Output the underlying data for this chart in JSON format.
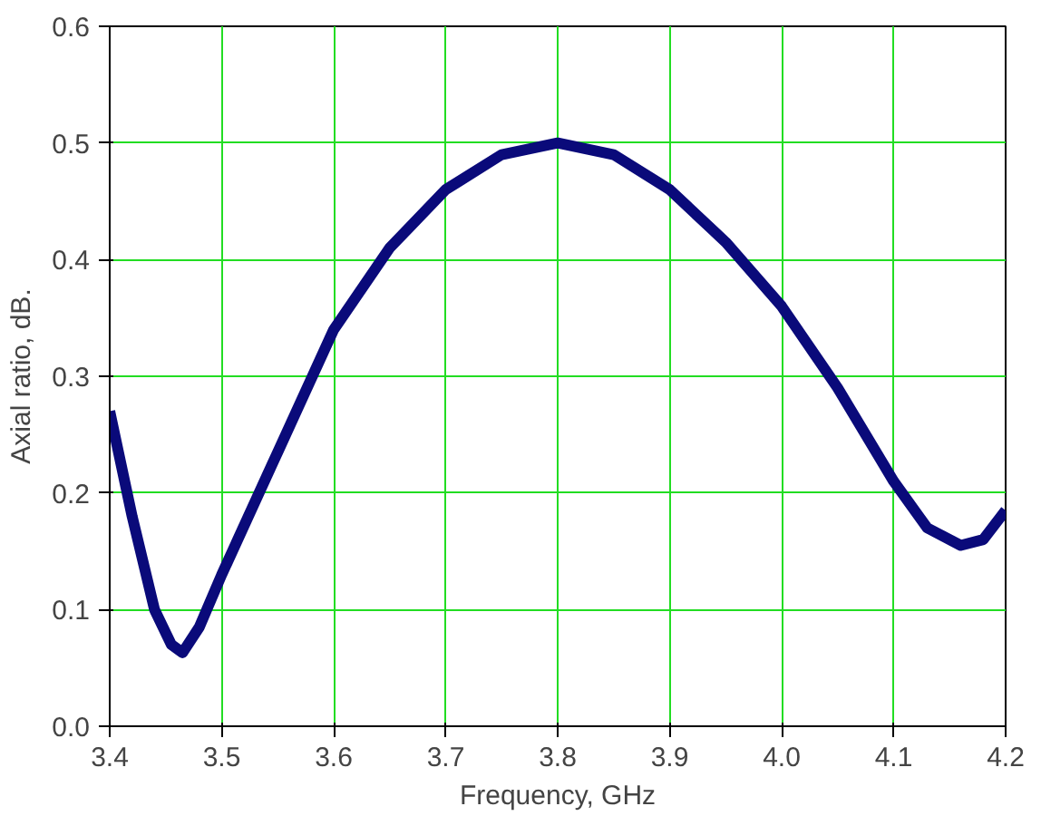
{
  "chart_data": {
    "type": "line",
    "xlabel": "Frequency, GHz",
    "ylabel": "Axial ratio, dB.",
    "x": [
      3.4,
      3.42,
      3.44,
      3.455,
      3.465,
      3.48,
      3.5,
      3.55,
      3.6,
      3.65,
      3.7,
      3.75,
      3.8,
      3.85,
      3.9,
      3.95,
      4.0,
      4.05,
      4.1,
      4.13,
      4.16,
      4.18,
      4.2
    ],
    "series": [
      {
        "color": "#0a0a7a",
        "values": [
          0.27,
          0.18,
          0.1,
          0.07,
          0.063,
          0.085,
          0.13,
          0.235,
          0.34,
          0.41,
          0.46,
          0.49,
          0.5,
          0.49,
          0.46,
          0.415,
          0.36,
          0.29,
          0.21,
          0.17,
          0.155,
          0.16,
          0.185
        ]
      }
    ],
    "xlim": [
      3.4,
      4.2
    ],
    "ylim": [
      0,
      0.6
    ],
    "xticks": [
      3.4,
      3.5,
      3.6,
      3.7,
      3.8,
      3.9,
      {
        "value": 4.0,
        "label": "4.0"
      },
      4.1,
      4.2
    ],
    "yticks": [
      {
        "value": 0,
        "label": "0.0"
      },
      0.1,
      0.2,
      0.3,
      0.4,
      0.5,
      0.6
    ],
    "grid": true,
    "marker": "none",
    "line_style": "solid"
  }
}
